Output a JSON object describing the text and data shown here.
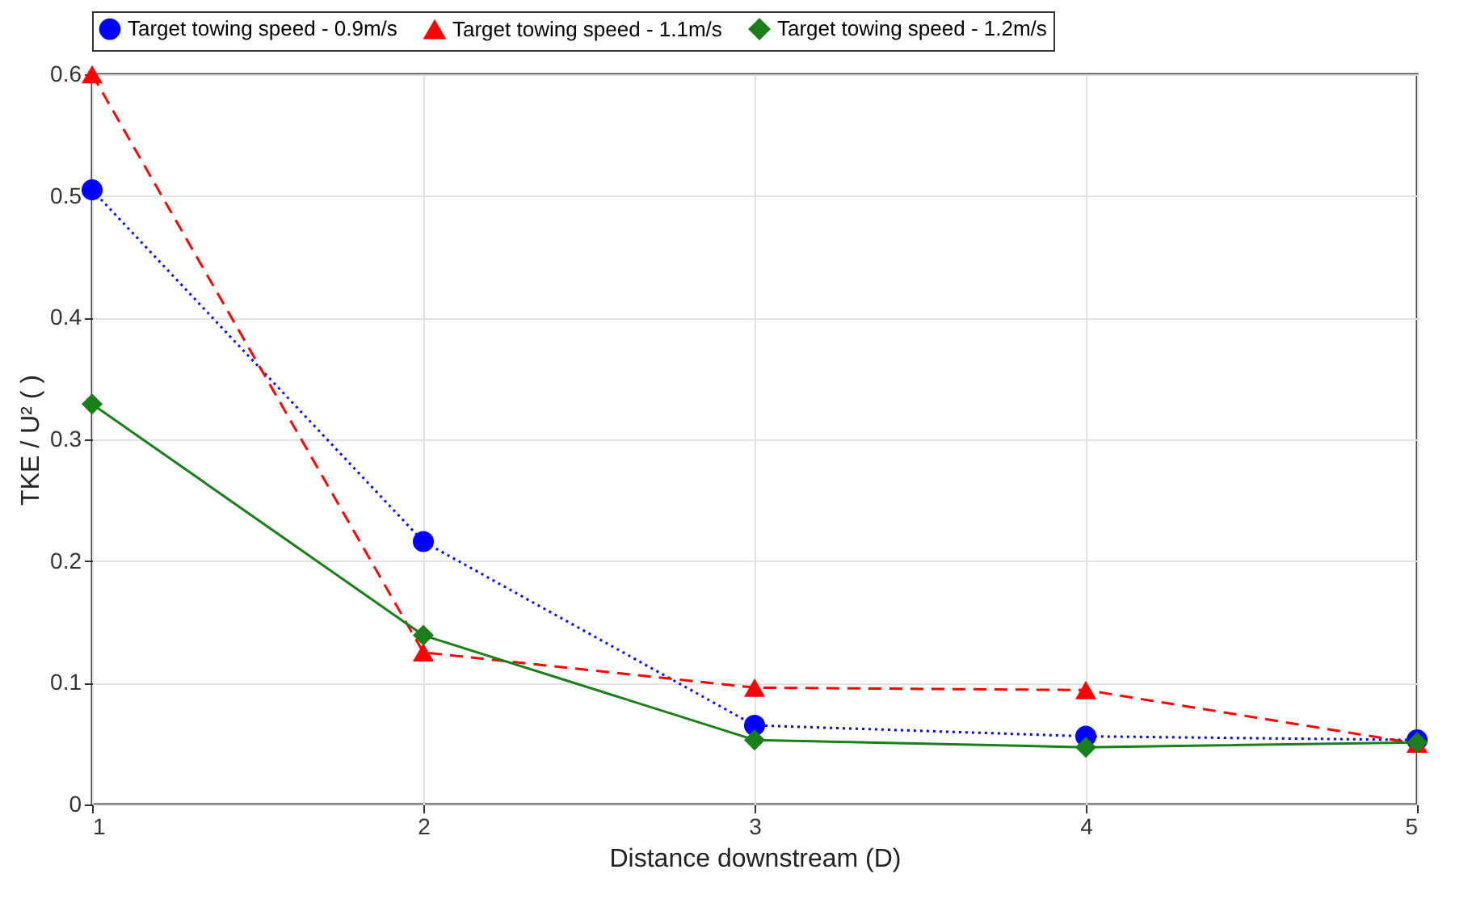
{
  "chart_data": {
    "type": "line",
    "xlabel": "Distance downstream (D)",
    "ylabel": "TKE / U² ( )",
    "x": [
      1,
      2,
      3,
      4,
      5
    ],
    "xlim": [
      1,
      5
    ],
    "xticks": [
      1,
      2,
      3,
      4,
      5
    ],
    "ylim": [
      0,
      0.6
    ],
    "yticks": [
      0,
      0.1,
      0.2,
      0.3,
      0.4,
      0.5,
      0.6
    ],
    "grid": true,
    "legend": "top",
    "series": [
      {
        "name": "Target towing speed - 0.9m/s",
        "color": "#0000ff",
        "marker": "circle",
        "line_style": "dotted",
        "values": [
          0.505,
          0.216,
          0.065,
          0.056,
          0.053
        ]
      },
      {
        "name": "Target towing speed - 1.1m/s",
        "color": "#ff0000",
        "marker": "triangle",
        "line_style": "dashed",
        "values": [
          0.6,
          0.125,
          0.096,
          0.094,
          0.05
        ]
      },
      {
        "name": "Target towing speed - 1.2m/s",
        "color": "#1a7f1a",
        "marker": "diamond",
        "line_style": "solid",
        "values": [
          0.329,
          0.139,
          0.053,
          0.047,
          0.051
        ]
      }
    ]
  }
}
